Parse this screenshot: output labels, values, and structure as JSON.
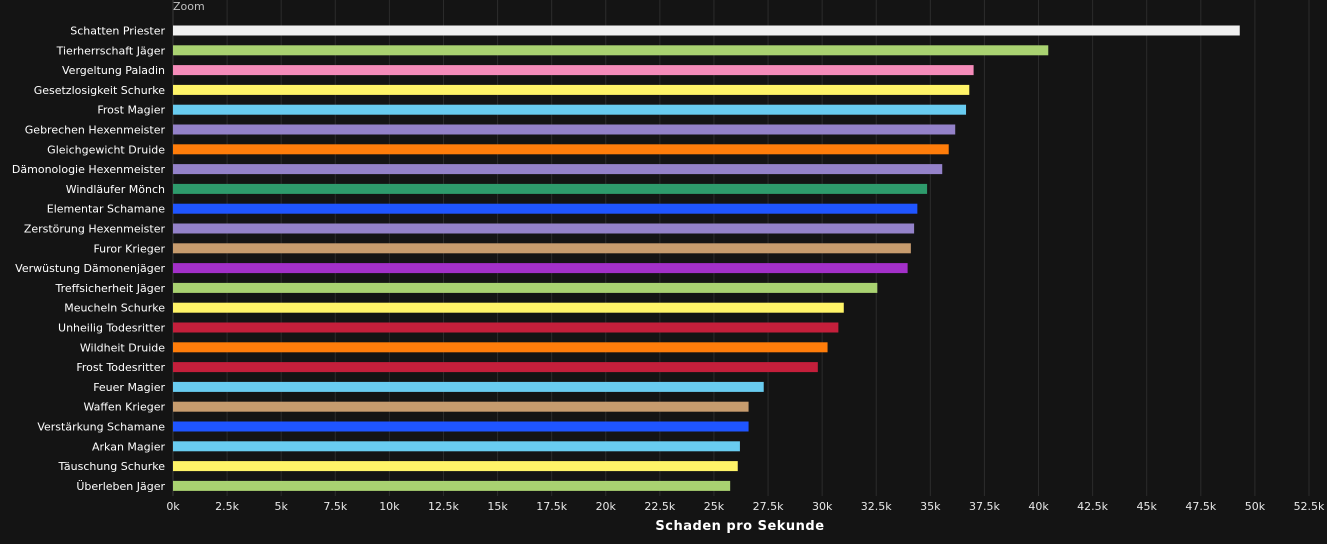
{
  "zoom_label": "Zoom",
  "chart_data": {
    "type": "bar",
    "orientation": "horizontal",
    "xlabel": "Schaden pro Sekunde",
    "xlim": [
      0,
      52500
    ],
    "x_ticks": [
      0,
      2500,
      5000,
      7500,
      10000,
      12500,
      15000,
      17500,
      20000,
      22500,
      25000,
      27500,
      30000,
      32500,
      35000,
      37500,
      40000,
      42500,
      45000,
      47500,
      50000,
      52500
    ],
    "x_tick_labels": [
      "0k",
      "2.5k",
      "5k",
      "7.5k",
      "10k",
      "12.5k",
      "15k",
      "17.5k",
      "20k",
      "22.5k",
      "25k",
      "27.5k",
      "30k",
      "32.5k",
      "35k",
      "37.5k",
      "40k",
      "42.5k",
      "45k",
      "47.5k",
      "50k",
      "52.5k"
    ],
    "grid": true,
    "categories": [
      "Schatten Priester",
      "Tierherrschaft Jäger",
      "Vergeltung Paladin",
      "Gesetzlosigkeit Schurke",
      "Frost Magier",
      "Gebrechen Hexenmeister",
      "Gleichgewicht Druide",
      "Dämonologie Hexenmeister",
      "Windläufer Mönch",
      "Elementar Schamane",
      "Zerstörung Hexenmeister",
      "Furor Krieger",
      "Verwüstung Dämonenjäger",
      "Treffsicherheit Jäger",
      "Meucheln Schurke",
      "Unheilig Todesritter",
      "Wildheit Druide",
      "Frost Todesritter",
      "Feuer Magier",
      "Waffen Krieger",
      "Verstärkung Schamane",
      "Arkan Magier",
      "Täuschung Schurke",
      "Überleben Jäger"
    ],
    "values": [
      49300,
      40450,
      37000,
      36800,
      36650,
      36150,
      35850,
      35550,
      34850,
      34400,
      34250,
      34100,
      33950,
      32550,
      31000,
      30750,
      30250,
      29800,
      27300,
      26600,
      26600,
      26200,
      26100,
      25750
    ],
    "colors": [
      "#f0f0f0",
      "#a9d271",
      "#f58cba",
      "#fff468",
      "#69ccf0",
      "#9482c9",
      "#ff7d0a",
      "#9482c9",
      "#2e9b6c",
      "#1f55ff",
      "#9482c9",
      "#c79c6e",
      "#a330c9",
      "#a9d271",
      "#fff468",
      "#c41f3b",
      "#ff7d0a",
      "#c41f3b",
      "#69ccf0",
      "#c79c6e",
      "#1f55ff",
      "#69ccf0",
      "#fff468",
      "#a9d271"
    ]
  }
}
